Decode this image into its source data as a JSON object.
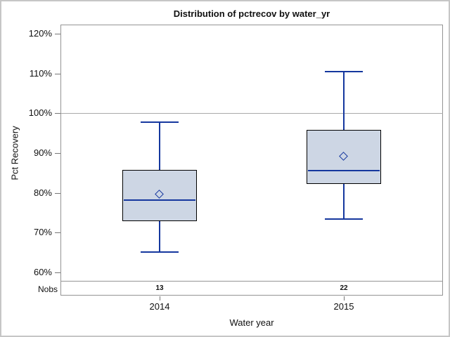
{
  "chart_data": {
    "type": "boxplot",
    "title": "Distribution of pctrecov by water_yr",
    "xlabel": "Water year",
    "ylabel": "Pct Recovery",
    "y_axis": {
      "min": 60,
      "max": 120,
      "tick_values": [
        120,
        110,
        100,
        90,
        80,
        70,
        60
      ],
      "tick_labels": [
        "120%",
        "110%",
        "100%",
        "90%",
        "80%",
        "70%",
        "60%"
      ]
    },
    "reference_line_y": 100,
    "grid": "off",
    "nobs_row_label": "Nobs",
    "categories": [
      "2014",
      "2015"
    ],
    "series": [
      {
        "category": "2014",
        "nobs": "13",
        "whisker_low": 65.2,
        "q1": 72.8,
        "median": 78.1,
        "q3": 85.7,
        "whisker_high": 97.8,
        "mean": 79.5
      },
      {
        "category": "2015",
        "nobs": "22",
        "whisker_low": 73.5,
        "q1": 82.3,
        "median": 85.5,
        "q3": 95.8,
        "whisker_high": 110.5,
        "mean": 89.0
      }
    ]
  },
  "colors": {
    "box_fill": "#cdd6e4",
    "box_border": "#000000",
    "line_blue": "#15379e",
    "frame_gray": "#949494",
    "tick_gray": "#767676",
    "reference_line": "#a9a9a9",
    "outer_border": "#c6c6c6",
    "text": "#101010"
  }
}
